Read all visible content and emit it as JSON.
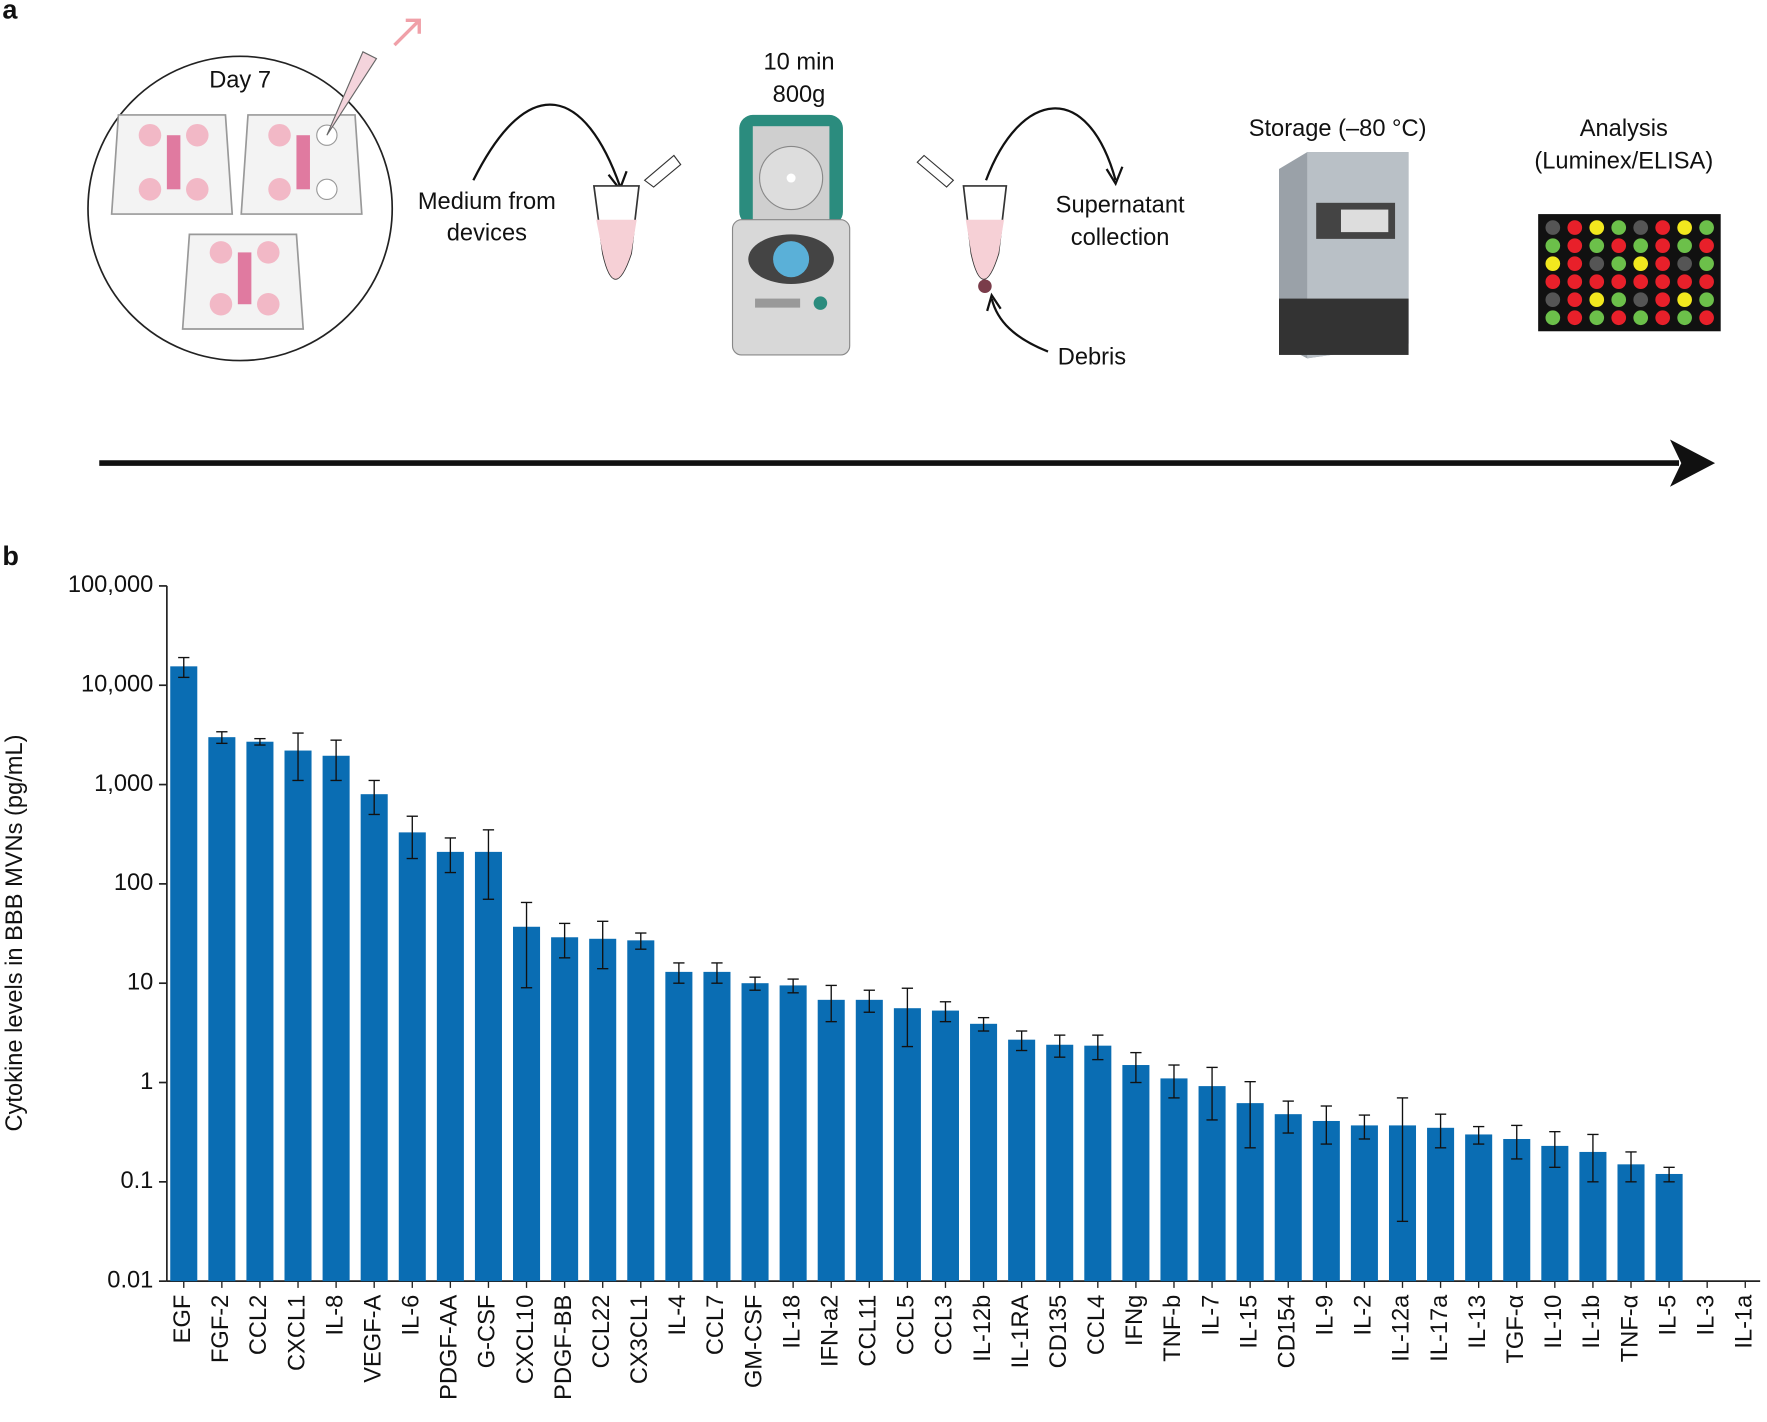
{
  "panel_a": {
    "label": "a",
    "day": "Day 7",
    "time": "10 min",
    "force": "800g",
    "medium": [
      "Medium from",
      "devices"
    ],
    "supernatant": [
      "Supernatant",
      "collection"
    ],
    "debris": "Debris",
    "storage": "Storage (–80 °C)",
    "analysis": [
      "Analysis",
      "(Luminex/ELISA)"
    ]
  },
  "chart_data": {
    "label": "b",
    "type": "bar",
    "log_scale": true,
    "color": "#0a6db3",
    "y_label": "Cytokine levels in BBB MVNs (pg/mL)",
    "ylim": [
      0.01,
      100000
    ],
    "yticks": [
      0.01,
      0.1,
      1,
      10,
      100,
      {
        "value": 1000,
        "label": "1,000"
      },
      {
        "value": 10000,
        "label": "10,000"
      },
      {
        "value": 100000,
        "label": "100,000"
      }
    ],
    "categories": [
      "EGF",
      "FGF-2",
      "CCL2",
      "CXCL1",
      "IL-8",
      "VEGF-A",
      "IL-6",
      "PDGF-AA",
      "G-CSF",
      "CXCL10",
      "PDGF-BB",
      "CCL22",
      "CX3CL1",
      "IL-4",
      "CCL7",
      "GM-CSF",
      "IL-18",
      "IFN-a2",
      "CCL11",
      "CCL5",
      "CCL3",
      "IL-12b",
      "IL-1RA",
      "CD135",
      "CCL4",
      "IFNg",
      "TNF-b",
      "IL-7",
      "IL-15",
      "CD154",
      "IL-9",
      "IL-2",
      "IL-12a",
      "IL-17a",
      "IL-13",
      "TGF-α",
      "IL-10",
      "IL-1b",
      "TNF-α",
      "IL-5",
      "IL-3",
      "IL-1a"
    ],
    "values": [
      15500,
      3000,
      2700,
      2200,
      1950,
      800,
      330,
      210,
      210,
      37,
      29,
      28,
      27,
      13,
      13,
      10,
      9.5,
      6.8,
      6.8,
      5.6,
      5.3,
      3.9,
      2.7,
      2.4,
      2.35,
      1.5,
      1.1,
      0.92,
      0.62,
      0.48,
      0.41,
      0.37,
      0.37,
      0.35,
      0.3,
      0.27,
      0.23,
      0.2,
      0.15,
      0.12,
      null,
      null
    ],
    "errors": [
      3500,
      400,
      200,
      1100,
      850,
      300,
      150,
      80,
      140,
      28,
      11,
      14,
      5,
      3,
      3,
      1.5,
      1.5,
      2.7,
      1.7,
      3.3,
      1.2,
      0.6,
      0.6,
      0.6,
      0.65,
      0.5,
      0.4,
      0.5,
      0.4,
      0.17,
      0.17,
      0.1,
      0.33,
      0.13,
      0.06,
      0.1,
      0.09,
      0.1,
      0.05,
      0.02,
      null,
      null
    ]
  }
}
